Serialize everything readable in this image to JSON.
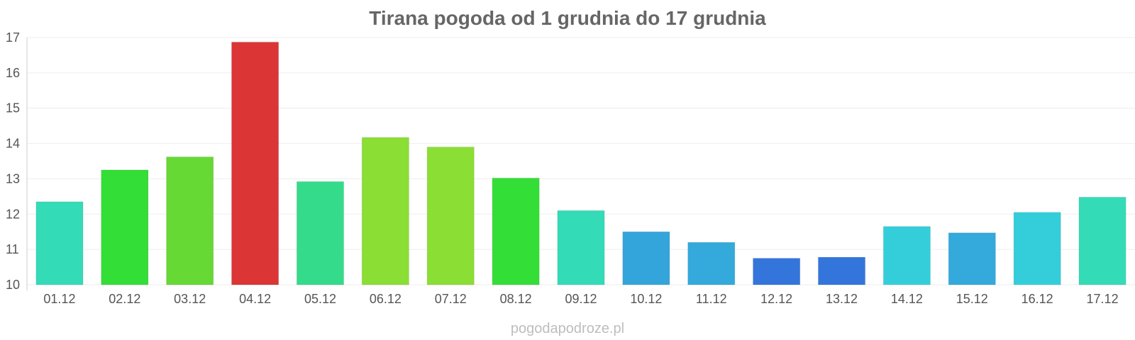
{
  "chart_data": {
    "type": "bar",
    "title": "Tirana pogoda od 1 grudnia do 17 grudnia",
    "xlabel": "",
    "ylabel": "",
    "categories": [
      "01.12",
      "02.12",
      "03.12",
      "04.12",
      "05.12",
      "06.12",
      "07.12",
      "08.12",
      "09.12",
      "10.12",
      "11.12",
      "12.12",
      "13.12",
      "14.12",
      "15.12",
      "16.12",
      "17.12"
    ],
    "values": [
      12.35,
      13.25,
      13.62,
      16.87,
      12.92,
      14.17,
      13.9,
      13.02,
      12.1,
      11.5,
      11.2,
      10.75,
      10.78,
      11.65,
      11.47,
      12.05,
      12.48
    ],
    "colors": [
      "#34dbb7",
      "#33de36",
      "#66d934",
      "#dc3535",
      "#34db8a",
      "#8ade34",
      "#8ade34",
      "#33de36",
      "#34dbb7",
      "#34a5db",
      "#34a9db",
      "#3475db",
      "#3475db",
      "#34cedb",
      "#34a9db",
      "#34cedb",
      "#34dbb7"
    ],
    "ylim": [
      10,
      17
    ],
    "yticks": [
      10,
      11,
      12,
      13,
      14,
      15,
      16,
      17
    ],
    "grid": true,
    "legend": "none"
  },
  "watermark": "pogodapodroze.pl"
}
